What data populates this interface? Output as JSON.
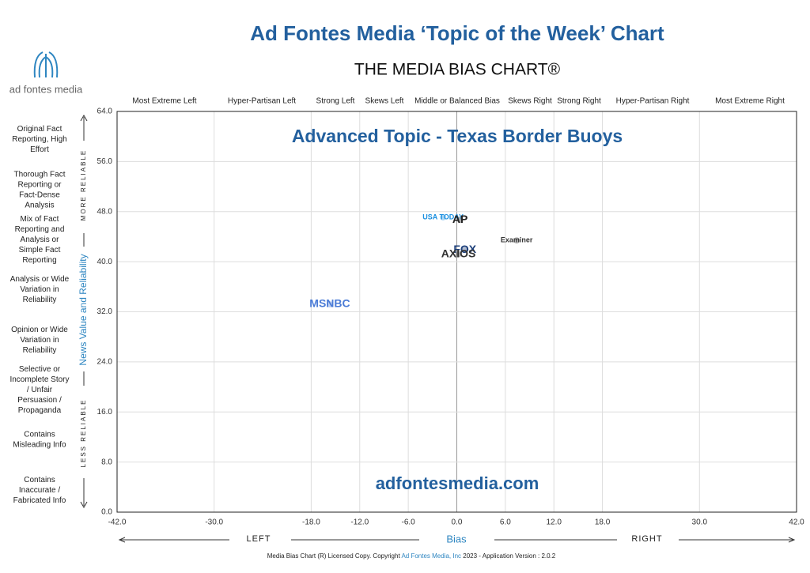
{
  "chart_data": {
    "type": "scatter",
    "title": "Ad Fontes Media ‘Topic of the Week’ Chart",
    "subtitle": "THE MEDIA BIAS CHART®",
    "chart_title": "Advanced Topic - Texas Border Buoys",
    "watermark": "adfontesmedia.com",
    "brand": "ad fontes media",
    "xlabel": "Bias",
    "ylabel": "News Value and Reliability",
    "y_top_note": "MORE RELIABLE",
    "y_bottom_note": "LESS RELIABLE",
    "x_left_note": "LEFT",
    "x_right_note": "RIGHT",
    "bias_columns": [
      "Most Extreme Left",
      "Hyper-Partisan Left",
      "Strong Left",
      "Skews Left",
      "Middle or Balanced Bias",
      "Skews Right",
      "Strong Right",
      "Hyper-Partisan Right",
      "Most Extreme Right"
    ],
    "reliability_rows": [
      "Original Fact Reporting, High Effort",
      "Thorough Fact Reporting or Fact-Dense Analysis",
      "Mix of Fact Reporting and Analysis or Simple Fact Reporting",
      "Analysis or Wide Variation in Reliability",
      "Opinion or Wide Variation in Reliability",
      "Selective or Incomplete Story / Unfair Persuasion / Propaganda",
      "Contains Misleading Info",
      "Contains Inaccurate / Fabricated Info"
    ],
    "xlim": [
      -42,
      42
    ],
    "ylim": [
      0,
      64
    ],
    "xticks": [
      {
        "value": -42,
        "label": "-42.0"
      },
      {
        "value": -30,
        "label": "-30.0"
      },
      {
        "value": -18,
        "label": "-18.0"
      },
      {
        "value": -12,
        "label": "-12.0"
      },
      {
        "value": -6,
        "label": "-6.0"
      },
      {
        "value": 0,
        "label": "0.0"
      },
      {
        "value": 6,
        "label": "6.0"
      },
      {
        "value": 12,
        "label": "12.0"
      },
      {
        "value": 18,
        "label": "18.0"
      },
      {
        "value": 30,
        "label": "30.0"
      },
      {
        "value": 42,
        "label": "42.0"
      }
    ],
    "yticks": [
      {
        "value": 0,
        "label": "0.0"
      },
      {
        "value": 8,
        "label": "8.0"
      },
      {
        "value": 16,
        "label": "16.0"
      },
      {
        "value": 24,
        "label": "24.0"
      },
      {
        "value": 32,
        "label": "32.0"
      },
      {
        "value": 40,
        "label": "40.0"
      },
      {
        "value": 48,
        "label": "48.0"
      },
      {
        "value": 56,
        "label": "56.0"
      },
      {
        "value": 64,
        "label": "64.0"
      }
    ],
    "grid": true,
    "points": [
      {
        "name": "MSNBC",
        "x": -15.7,
        "y": 33.2,
        "color": "#4a7bd6"
      },
      {
        "name": "USA TODAY",
        "x": -1.7,
        "y": 47.1,
        "color": "#1a8fe0"
      },
      {
        "name": "AP",
        "x": 0.4,
        "y": 46.7,
        "color": "#222222"
      },
      {
        "name": "FOX",
        "x": 1.0,
        "y": 41.9,
        "color": "#1d3f7a"
      },
      {
        "name": "AXIOS",
        "x": 0.2,
        "y": 41.2,
        "color": "#333333"
      },
      {
        "name": "Examiner",
        "x": 7.4,
        "y": 43.4,
        "color": "#333333"
      }
    ],
    "footer": [
      "Media Bias Chart (R) Licensed Copy. Copyright",
      "Ad Fontes Media, Inc",
      "2023  - Application Version : 2.0.2"
    ]
  }
}
